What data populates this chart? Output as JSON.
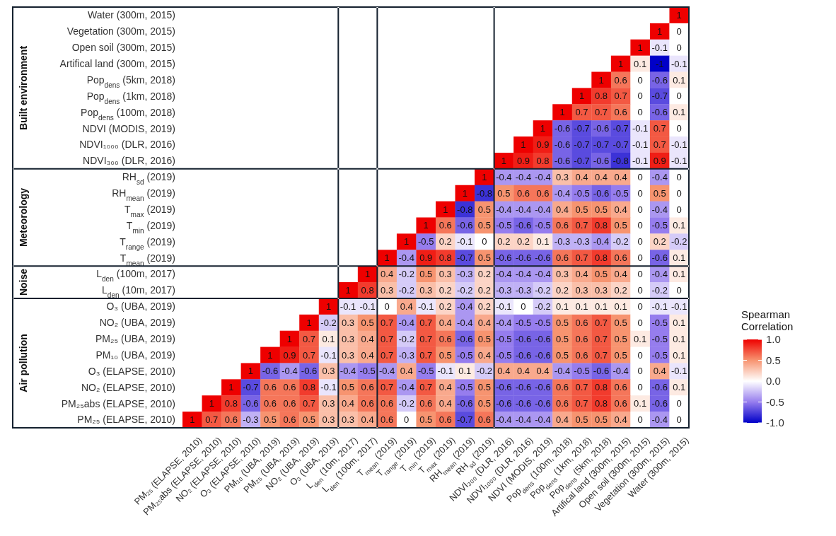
{
  "chart_data": {
    "type": "heatmap",
    "categories": [
      "PM₂₅ (ELAPSE, 2010)",
      "PM₂₅abs (ELAPSE, 2010)",
      "NO₂ (ELAPSE, 2010)",
      "O₃ (ELAPSE, 2010)",
      "PM₁₀ (UBA, 2019)",
      "PM₂₅ (UBA, 2019)",
      "NO₂ (UBA, 2019)",
      "O₃ (UBA, 2019)",
      "L$_{den}$ (10m, 2017)",
      "L$_{den}$ (100m, 2017)",
      "T$_{mean}$ (2019)",
      "T$_{range}$ (2019)",
      "T$_{min}$ (2019)",
      "T$_{max}$ (2019)",
      "RH$_{mean}$ (2019)",
      "RH$_{sd}$ (2019)",
      "NDVI₃₀₀ (DLR, 2016)",
      "NDVI₁₀₀₀ (DLR, 2016)",
      "NDVI (MODIS, 2019)",
      "Pop$_{dens}$ (100m, 2018)",
      "Pop$_{dens}$ (1km, 2018)",
      "Pop$_{dens}$ (5km, 2018)",
      "Artifical land (300m, 2015)",
      "Open soil (300m, 2015)",
      "Vegetation (300m, 2015)",
      "Water (300m, 2015)"
    ],
    "y_categories": [
      "Water (300m, 2015)",
      "Vegetation (300m, 2015)",
      "Open soil (300m, 2015)",
      "Artifical land (300m, 2015)",
      "Pop$_{dens}$ (5km, 2018)",
      "Pop$_{dens}$ (1km, 2018)",
      "Pop$_{dens}$ (100m, 2018)",
      "NDVI (MODIS, 2019)",
      "NDVI₁₀₀₀ (DLR, 2016)",
      "NDVI₃₀₀ (DLR, 2016)",
      "RH$_{sd}$ (2019)",
      "RH$_{mean}$ (2019)",
      "T$_{max}$ (2019)",
      "T$_{min}$ (2019)",
      "T$_{range}$ (2019)",
      "T$_{mean}$ (2019)",
      "L$_{den}$ (100m, 2017)",
      "L$_{den}$ (10m, 2017)",
      "O₃ (UBA, 2019)",
      "NO₂ (UBA, 2019)",
      "PM₂₅ (UBA, 2019)",
      "PM₁₀ (UBA, 2019)",
      "O₃ (ELAPSE, 2010)",
      "NO₂ (ELAPSE, 2010)",
      "PM₂₅abs (ELAPSE, 2010)",
      "PM₂₅ (ELAPSE, 2010)"
    ],
    "cells": [
      [
        null,
        null,
        null,
        null,
        null,
        null,
        null,
        null,
        null,
        null,
        null,
        null,
        null,
        null,
        null,
        null,
        null,
        null,
        null,
        null,
        null,
        null,
        null,
        null,
        null,
        1
      ],
      [
        null,
        null,
        null,
        null,
        null,
        null,
        null,
        null,
        null,
        null,
        null,
        null,
        null,
        null,
        null,
        null,
        null,
        null,
        null,
        null,
        null,
        null,
        null,
        null,
        1,
        0
      ],
      [
        null,
        null,
        null,
        null,
        null,
        null,
        null,
        null,
        null,
        null,
        null,
        null,
        null,
        null,
        null,
        null,
        null,
        null,
        null,
        null,
        null,
        null,
        null,
        1,
        -0.1,
        0
      ],
      [
        null,
        null,
        null,
        null,
        null,
        null,
        null,
        null,
        null,
        null,
        null,
        null,
        null,
        null,
        null,
        null,
        null,
        null,
        null,
        null,
        null,
        null,
        1,
        0.1,
        -1,
        -0.1
      ],
      [
        null,
        null,
        null,
        null,
        null,
        null,
        null,
        null,
        null,
        null,
        null,
        null,
        null,
        null,
        null,
        null,
        null,
        null,
        null,
        null,
        null,
        1,
        0.6,
        0,
        -0.6,
        0.1
      ],
      [
        null,
        null,
        null,
        null,
        null,
        null,
        null,
        null,
        null,
        null,
        null,
        null,
        null,
        null,
        null,
        null,
        null,
        null,
        null,
        null,
        1,
        0.8,
        0.7,
        0,
        -0.7,
        0
      ],
      [
        null,
        null,
        null,
        null,
        null,
        null,
        null,
        null,
        null,
        null,
        null,
        null,
        null,
        null,
        null,
        null,
        null,
        null,
        null,
        1,
        0.7,
        0.7,
        0.6,
        0,
        -0.6,
        0.1
      ],
      [
        null,
        null,
        null,
        null,
        null,
        null,
        null,
        null,
        null,
        null,
        null,
        null,
        null,
        null,
        null,
        null,
        null,
        null,
        1,
        -0.6,
        -0.7,
        -0.6,
        -0.7,
        -0.1,
        0.7,
        0
      ],
      [
        null,
        null,
        null,
        null,
        null,
        null,
        null,
        null,
        null,
        null,
        null,
        null,
        null,
        null,
        null,
        null,
        null,
        1,
        0.9,
        -0.6,
        -0.7,
        -0.7,
        -0.7,
        -0.1,
        0.7,
        -0.1
      ],
      [
        null,
        null,
        null,
        null,
        null,
        null,
        null,
        null,
        null,
        null,
        null,
        null,
        null,
        null,
        null,
        null,
        1,
        0.9,
        0.8,
        -0.6,
        -0.7,
        -0.6,
        -0.8,
        -0.1,
        0.9,
        -0.1
      ],
      [
        null,
        null,
        null,
        null,
        null,
        null,
        null,
        null,
        null,
        null,
        null,
        null,
        null,
        null,
        null,
        1,
        -0.4,
        -0.4,
        -0.4,
        0.3,
        0.4,
        0.4,
        0.4,
        0,
        -0.4,
        0
      ],
      [
        null,
        null,
        null,
        null,
        null,
        null,
        null,
        null,
        null,
        null,
        null,
        null,
        null,
        null,
        1,
        -0.8,
        0.5,
        0.6,
        0.6,
        -0.4,
        -0.5,
        -0.6,
        -0.5,
        0,
        0.5,
        0
      ],
      [
        null,
        null,
        null,
        null,
        null,
        null,
        null,
        null,
        null,
        null,
        null,
        null,
        null,
        1,
        -0.8,
        0.5,
        -0.4,
        -0.4,
        -0.4,
        0.4,
        0.5,
        0.5,
        0.4,
        0,
        -0.4,
        0
      ],
      [
        null,
        null,
        null,
        null,
        null,
        null,
        null,
        null,
        null,
        null,
        null,
        null,
        1,
        0.6,
        -0.6,
        0.5,
        -0.5,
        -0.6,
        -0.5,
        0.6,
        0.7,
        0.8,
        0.5,
        0,
        -0.5,
        0.1
      ],
      [
        null,
        null,
        null,
        null,
        null,
        null,
        null,
        null,
        null,
        null,
        null,
        1,
        -0.5,
        0.2,
        -0.1,
        0,
        0.2,
        0.2,
        0.1,
        -0.3,
        -0.3,
        -0.4,
        -0.2,
        0,
        0.2,
        -0.2
      ],
      [
        null,
        null,
        null,
        null,
        null,
        null,
        null,
        null,
        null,
        null,
        1,
        -0.4,
        0.9,
        0.8,
        -0.7,
        0.5,
        -0.6,
        -0.6,
        -0.6,
        0.6,
        0.7,
        0.8,
        0.6,
        0,
        -0.6,
        0.1
      ],
      [
        null,
        null,
        null,
        null,
        null,
        null,
        null,
        null,
        null,
        1,
        0.4,
        -0.2,
        0.5,
        0.3,
        -0.3,
        0.2,
        -0.4,
        -0.4,
        -0.4,
        0.3,
        0.4,
        0.5,
        0.4,
        0,
        -0.4,
        0.1
      ],
      [
        null,
        null,
        null,
        null,
        null,
        null,
        null,
        null,
        1,
        0.8,
        0.3,
        -0.2,
        0.3,
        0.2,
        -0.2,
        0.2,
        -0.3,
        -0.3,
        -0.2,
        0.2,
        0.3,
        0.3,
        0.2,
        0,
        -0.2,
        0
      ],
      [
        null,
        null,
        null,
        null,
        null,
        null,
        null,
        1,
        -0.1,
        -0.1,
        0,
        0.4,
        -0.1,
        0.2,
        -0.4,
        0.2,
        -0.1,
        0,
        -0.2,
        0.1,
        0.1,
        0.1,
        0.1,
        0,
        -0.1,
        -0.1
      ],
      [
        null,
        null,
        null,
        null,
        null,
        null,
        1,
        -0.2,
        0.3,
        0.5,
        0.7,
        -0.4,
        0.7,
        0.4,
        -0.4,
        0.4,
        -0.4,
        -0.5,
        -0.5,
        0.5,
        0.6,
        0.7,
        0.5,
        0,
        -0.5,
        0.1
      ],
      [
        null,
        null,
        null,
        null,
        null,
        1,
        0.7,
        0.1,
        0.3,
        0.4,
        0.7,
        -0.2,
        0.7,
        0.6,
        -0.6,
        0.5,
        -0.5,
        -0.6,
        -0.6,
        0.5,
        0.6,
        0.7,
        0.5,
        0.1,
        -0.5,
        0.1
      ],
      [
        null,
        null,
        null,
        null,
        1,
        0.9,
        0.7,
        -0.1,
        0.3,
        0.4,
        0.7,
        -0.3,
        0.7,
        0.5,
        -0.5,
        0.4,
        -0.5,
        -0.6,
        -0.6,
        0.5,
        0.6,
        0.7,
        0.5,
        0,
        -0.5,
        0.1
      ],
      [
        null,
        null,
        null,
        1,
        -0.6,
        -0.4,
        -0.6,
        0.3,
        -0.4,
        -0.5,
        -0.4,
        0.4,
        -0.5,
        -0.1,
        0.1,
        -0.2,
        0.4,
        0.4,
        0.4,
        -0.4,
        -0.5,
        -0.6,
        -0.4,
        0,
        0.4,
        -0.1
      ],
      [
        null,
        null,
        1,
        -0.7,
        0.6,
        0.6,
        0.8,
        -0.1,
        0.5,
        0.6,
        0.7,
        -0.4,
        0.7,
        0.4,
        -0.5,
        0.5,
        -0.6,
        -0.6,
        -0.6,
        0.6,
        0.7,
        0.8,
        0.6,
        0,
        -0.6,
        0.1
      ],
      [
        null,
        1,
        0.8,
        -0.6,
        0.6,
        0.6,
        0.7,
        0.3,
        0.4,
        0.6,
        0.6,
        -0.2,
        0.6,
        0.4,
        -0.6,
        0.5,
        -0.6,
        -0.6,
        -0.6,
        0.6,
        0.7,
        0.8,
        0.6,
        0.1,
        -0.6,
        0
      ],
      [
        1,
        0.7,
        0.6,
        -0.3,
        0.5,
        0.6,
        0.5,
        0.3,
        0.3,
        0.4,
        0.6,
        0,
        0.5,
        0.6,
        -0.7,
        0.6,
        -0.4,
        -0.4,
        -0.4,
        0.4,
        0.5,
        0.5,
        0.4,
        0,
        -0.4,
        0
      ]
    ],
    "data_labels": true,
    "clabel": "Spearman Correlation",
    "clim": [
      -1,
      1
    ],
    "cticks": [
      {
        "value": 1,
        "label": "1.0"
      },
      {
        "value": 0.5,
        "label": "0.5"
      },
      {
        "value": 0,
        "label": "0.0"
      },
      {
        "value": -0.5,
        "label": "-0.5"
      },
      {
        "value": -1,
        "label": "-1.0"
      }
    ],
    "annotations": [
      "Built environment",
      "Meteorology",
      "Noise",
      "Air pollution"
    ]
  }
}
